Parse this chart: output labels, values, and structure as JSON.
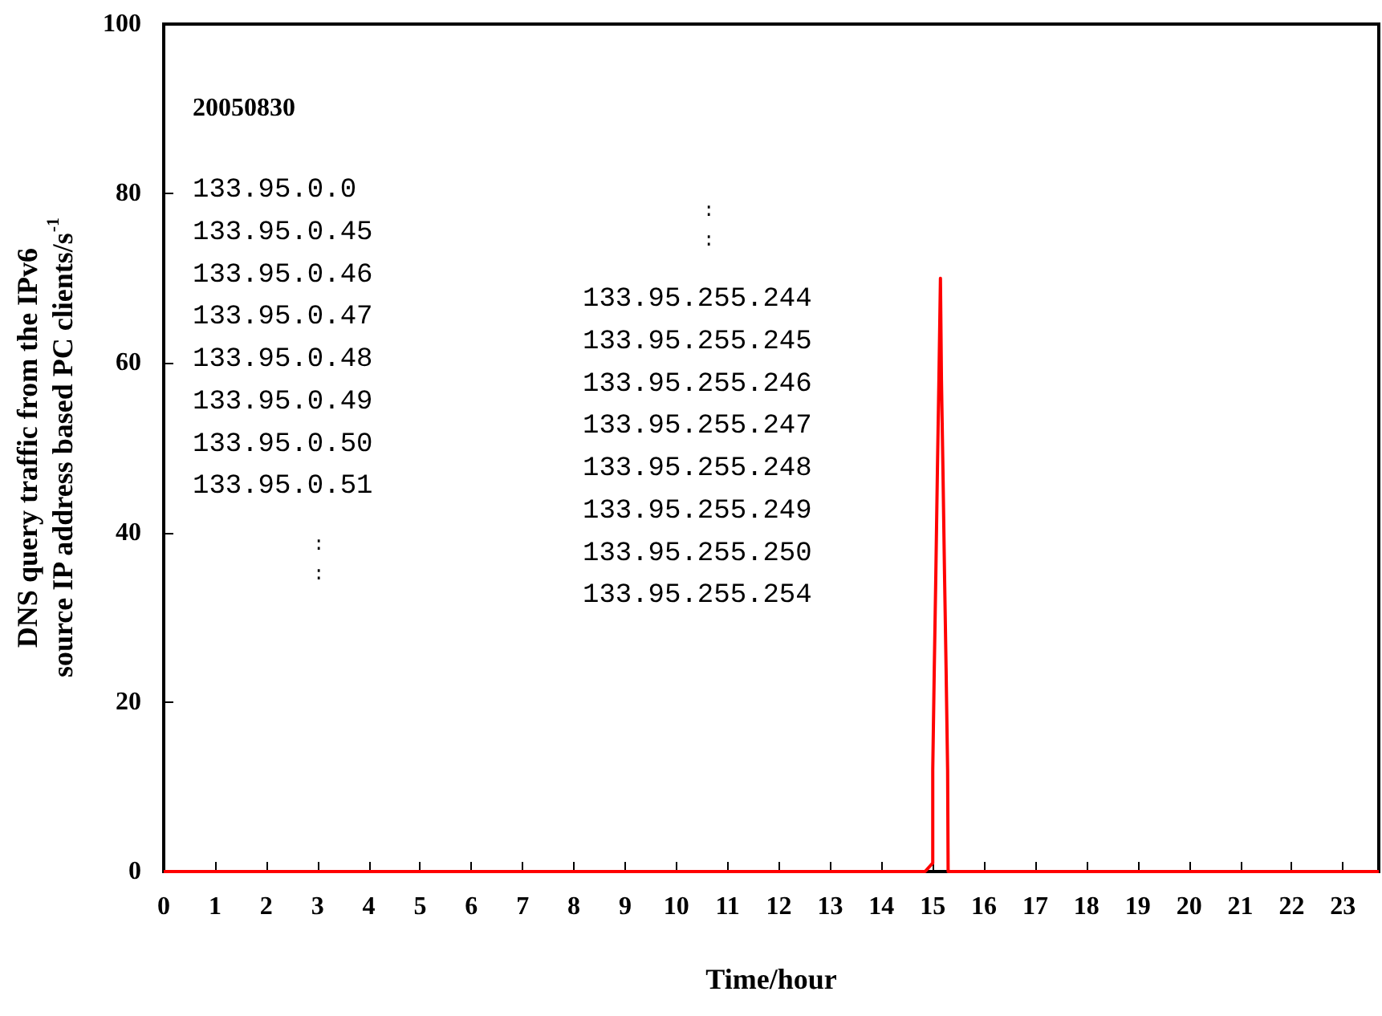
{
  "chart_data": {
    "type": "line",
    "xlabel": "Time/hour",
    "ylabel": "DNS query traffic from the IPv6\nsource IP address based PC clients/s$^{-1}$",
    "x": [
      0,
      14.85,
      15.0,
      15.0,
      15.03,
      15.06,
      15.09,
      15.12,
      15.15,
      15.17,
      15.2,
      15.23,
      15.26,
      15.29,
      15.3,
      23.7
    ],
    "series": [
      {
        "color": "#ff0000",
        "values": [
          0,
          0,
          1,
          12,
          24,
          35,
          47,
          58,
          70,
          58,
          47,
          35,
          24,
          12,
          0,
          0
        ]
      }
    ],
    "xlim": [
      0,
      23.7
    ],
    "xticks": [
      0,
      1,
      2,
      3,
      4,
      5,
      6,
      7,
      8,
      9,
      10,
      11,
      12,
      13,
      14,
      15,
      16,
      17,
      18,
      19,
      20,
      21,
      22,
      23
    ],
    "ylim": [
      0,
      100
    ],
    "yticks": [
      0,
      20,
      40,
      60,
      80,
      100
    ],
    "grid": false,
    "marker": "none",
    "line_style": "solid",
    "annotations": [
      "20050830",
      "133.95.0.0\n133.95.0.45\n133.95.0.46\n133.95.0.47\n133.95.0.48\n133.95.0.49\n133.95.0.50\n133.95.0.51",
      ":\n:",
      ":\n:",
      "133.95.255.244\n133.95.255.245\n133.95.255.246\n133.95.255.247\n133.95.255.248\n133.95.255.249\n133.95.255.250\n133.95.255.254"
    ]
  }
}
